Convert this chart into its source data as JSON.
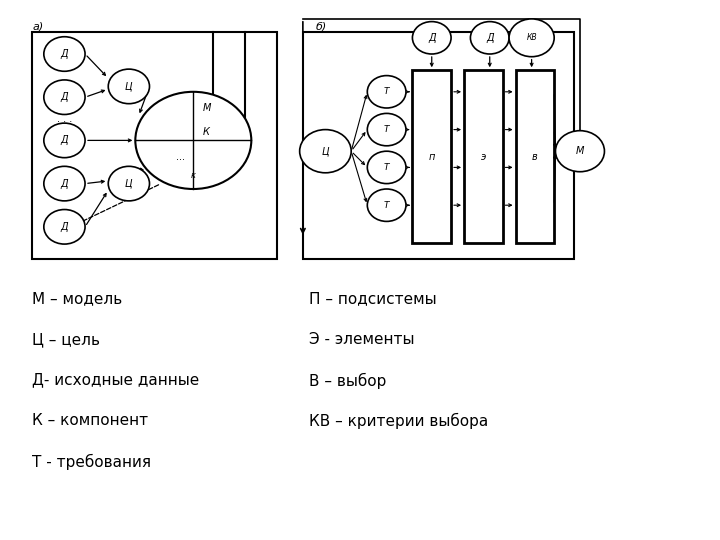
{
  "bg_color": "#ffffff",
  "purple_color": "#7B3F7B",
  "diagram_a_label": "а)",
  "diagram_b_label": "б)",
  "legend_left": [
    "М – модель",
    "Ц – цель",
    "Д- исходные данные",
    "К – компонент",
    "Т - требования"
  ],
  "legend_right": [
    "П – подсистемы",
    "Э - элементы",
    "В – выбор",
    "КВ – критерии выбора"
  ]
}
